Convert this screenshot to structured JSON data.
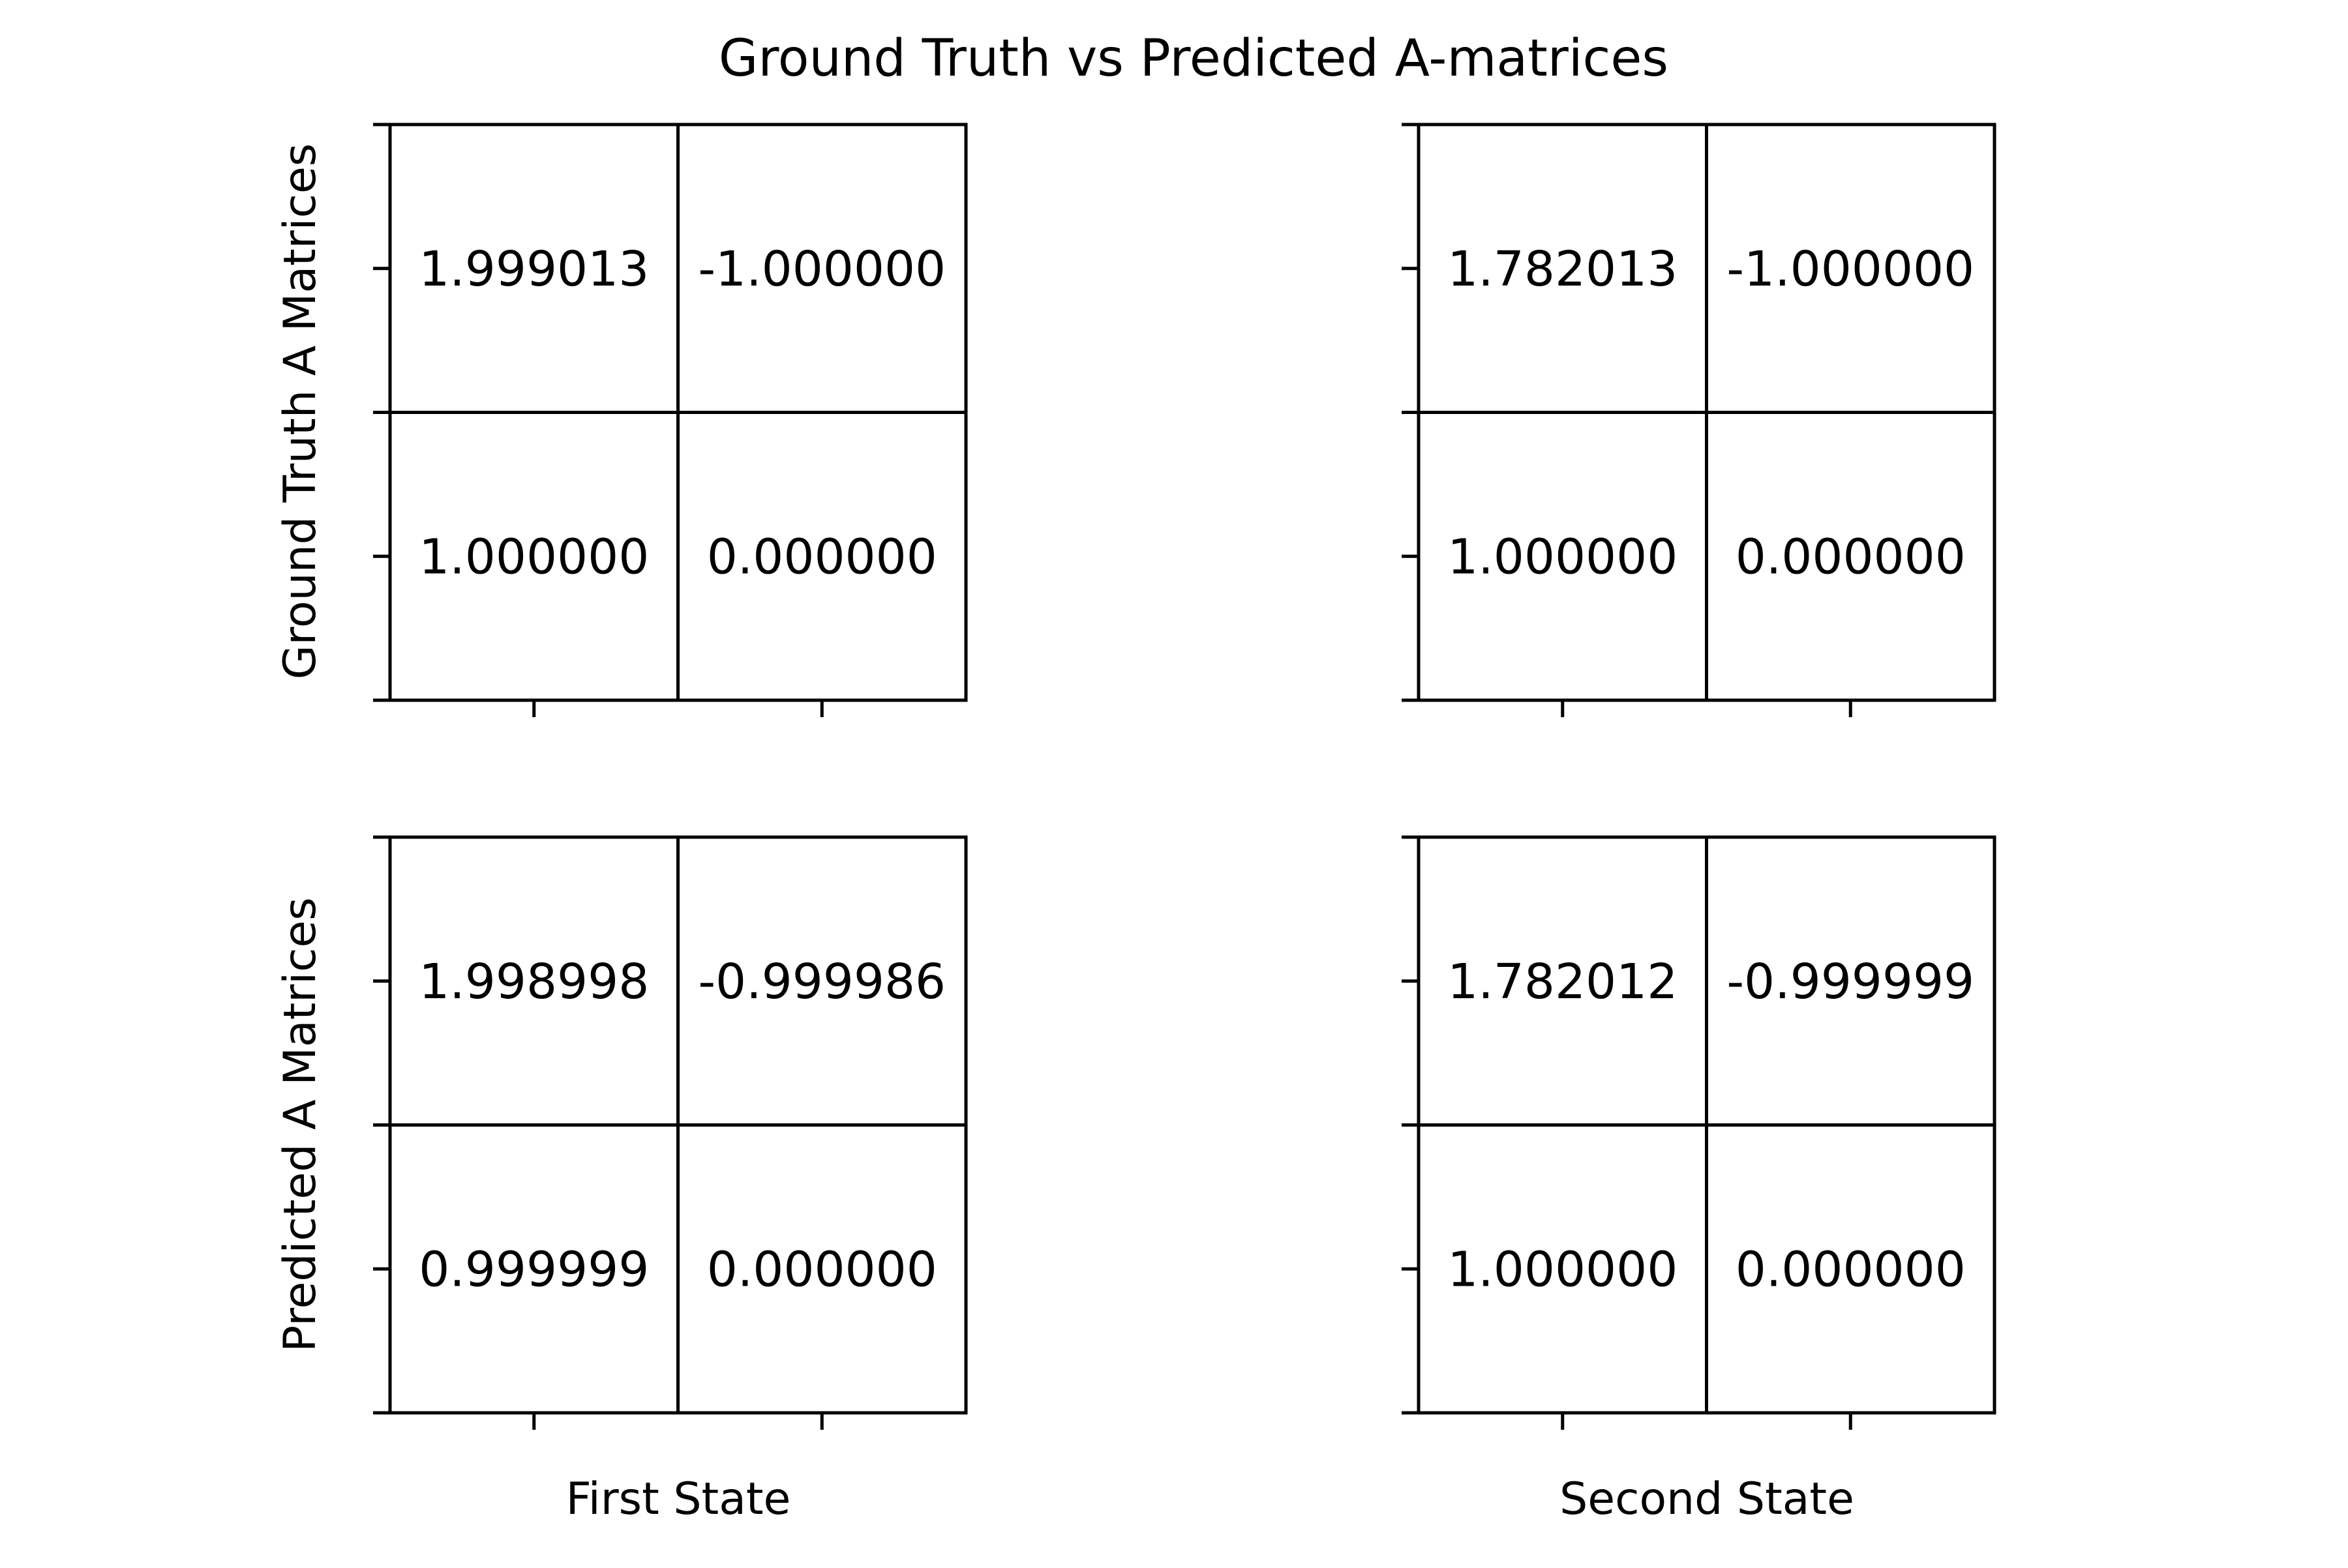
{
  "chart_data": {
    "type": "table",
    "title": "Ground Truth vs Predicted A-matrices",
    "row_labels": [
      "Ground Truth A Matrices",
      "Predicted A Matrices"
    ],
    "column_labels": [
      "First State",
      "Second State"
    ],
    "panels": [
      {
        "row": "Ground Truth A Matrices",
        "column": "First State",
        "cells": [
          [
            "1.999013",
            "-1.000000"
          ],
          [
            "1.000000",
            "0.000000"
          ]
        ]
      },
      {
        "row": "Ground Truth A Matrices",
        "column": "Second State",
        "cells": [
          [
            "1.782013",
            "-1.000000"
          ],
          [
            "1.000000",
            "0.000000"
          ]
        ]
      },
      {
        "row": "Predicted A Matrices",
        "column": "First State",
        "cells": [
          [
            "1.998998",
            "-0.999986"
          ],
          [
            "0.999999",
            "0.000000"
          ]
        ]
      },
      {
        "row": "Predicted A Matrices",
        "column": "Second State",
        "cells": [
          [
            "1.782012",
            "-0.999999"
          ],
          [
            "1.000000",
            "0.000000"
          ]
        ]
      }
    ],
    "grid": true,
    "legend": "none"
  }
}
